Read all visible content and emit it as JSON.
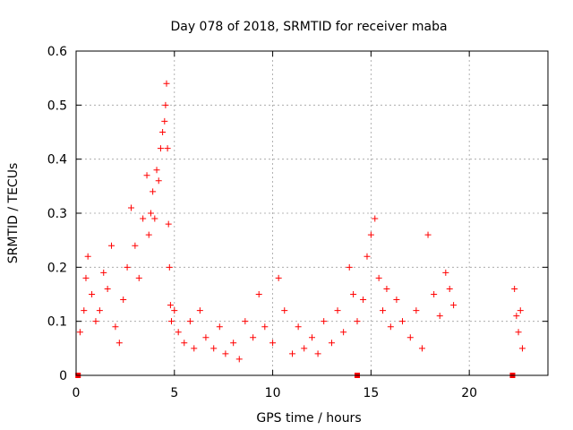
{
  "chart_data": {
    "type": "scatter",
    "title": "Day 078 of 2018, SRMTID for receiver maba",
    "xlabel": "GPS time / hours",
    "ylabel": "SRMTID / TECUs",
    "xlim": [
      0,
      24
    ],
    "ylim": [
      0,
      0.6
    ],
    "x_ticks": [
      0,
      5,
      10,
      15,
      20
    ],
    "x_tick_labels": [
      "0",
      "5",
      "10",
      "15",
      "20"
    ],
    "y_ticks": [
      0,
      0.1,
      0.2,
      0.3,
      0.4,
      0.5,
      0.6
    ],
    "y_tick_labels": [
      "0",
      "0.1",
      "0.2",
      "0.3",
      "0.4",
      "0.5",
      "0.6"
    ],
    "grid": true,
    "marker": "+",
    "series": [
      {
        "name": "SRMTID",
        "color": "#ff0000",
        "x": [
          0.2,
          0.4,
          0.5,
          0.6,
          0.8,
          1.0,
          1.2,
          1.4,
          1.6,
          1.8,
          2.0,
          2.2,
          2.4,
          2.6,
          2.8,
          3.0,
          3.2,
          3.4,
          3.6,
          3.7,
          3.8,
          3.9,
          4.0,
          4.1,
          4.2,
          4.3,
          4.4,
          4.5,
          4.55,
          4.6,
          4.65,
          4.7,
          4.75,
          4.8,
          4.85,
          5.0,
          5.2,
          5.5,
          5.8,
          6.0,
          6.3,
          6.6,
          7.0,
          7.3,
          7.6,
          8.0,
          8.3,
          8.6,
          9.0,
          9.3,
          9.6,
          10.0,
          10.3,
          10.6,
          11.0,
          11.3,
          11.6,
          12.0,
          12.3,
          12.6,
          13.0,
          13.3,
          13.6,
          13.9,
          14.1,
          14.3,
          14.6,
          14.8,
          15.0,
          15.2,
          15.4,
          15.6,
          15.8,
          16.0,
          16.3,
          16.6,
          17.0,
          17.3,
          17.6,
          17.9,
          18.2,
          18.5,
          18.8,
          19.0,
          19.2,
          22.3,
          22.4,
          22.5,
          22.6,
          22.7
        ],
        "y": [
          0.08,
          0.12,
          0.18,
          0.22,
          0.15,
          0.1,
          0.12,
          0.19,
          0.16,
          0.24,
          0.09,
          0.06,
          0.14,
          0.2,
          0.31,
          0.24,
          0.18,
          0.29,
          0.37,
          0.26,
          0.3,
          0.34,
          0.29,
          0.38,
          0.36,
          0.42,
          0.45,
          0.47,
          0.5,
          0.54,
          0.42,
          0.28,
          0.2,
          0.13,
          0.1,
          0.12,
          0.08,
          0.06,
          0.1,
          0.05,
          0.12,
          0.07,
          0.05,
          0.09,
          0.04,
          0.06,
          0.03,
          0.1,
          0.07,
          0.15,
          0.09,
          0.06,
          0.18,
          0.12,
          0.04,
          0.09,
          0.05,
          0.07,
          0.04,
          0.1,
          0.06,
          0.12,
          0.08,
          0.2,
          0.15,
          0.1,
          0.14,
          0.22,
          0.26,
          0.29,
          0.18,
          0.12,
          0.16,
          0.09,
          0.14,
          0.1,
          0.07,
          0.12,
          0.05,
          0.26,
          0.15,
          0.11,
          0.19,
          0.16,
          0.13,
          0.16,
          0.11,
          0.08,
          0.12,
          0.05
        ],
        "baseline_squares_x": [
          0.1,
          14.3,
          22.2
        ]
      }
    ]
  }
}
